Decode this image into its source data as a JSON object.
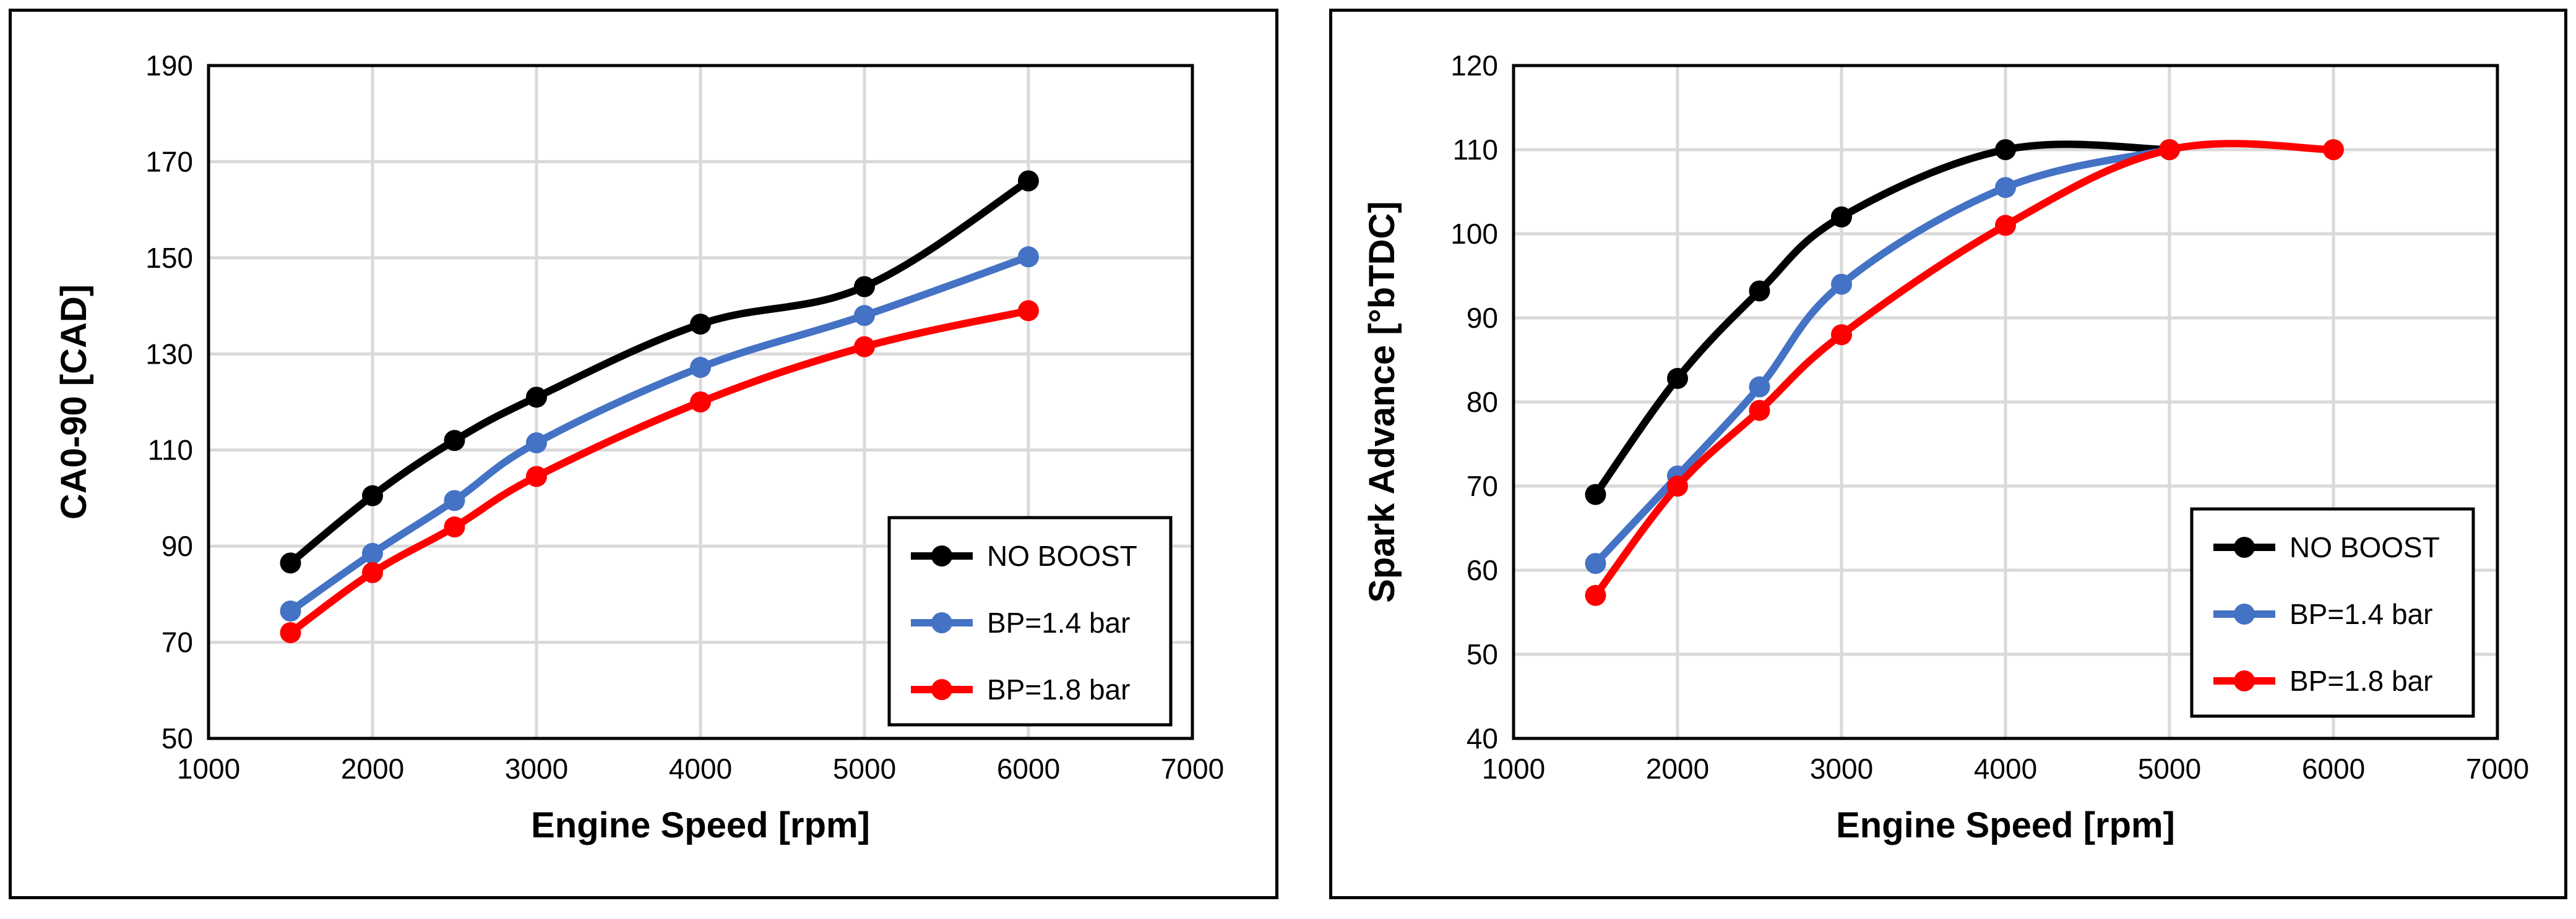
{
  "chart_data": [
    {
      "type": "line",
      "title": "",
      "xlabel": "Engine Speed [rpm]",
      "ylabel": "CA0-90 [CAD]",
      "xlim": [
        1000,
        7000
      ],
      "ylim": [
        50,
        190
      ],
      "xticks": [
        1000,
        2000,
        3000,
        4000,
        5000,
        6000,
        7000
      ],
      "yticks": [
        50,
        70,
        90,
        110,
        130,
        150,
        170,
        190
      ],
      "grid": true,
      "legend_position": "bottom-right",
      "series": [
        {
          "name": "NO BOOST",
          "color": "#000000",
          "x": [
            1500,
            2000,
            2500,
            3000,
            4000,
            5000,
            6000
          ],
          "y": [
            86.5,
            100.5,
            112,
            121,
            136.2,
            144,
            166
          ]
        },
        {
          "name": "BP=1.4 bar",
          "color": "#4472c4",
          "x": [
            1500,
            2000,
            2500,
            3000,
            4000,
            5000,
            6000
          ],
          "y": [
            76.5,
            88.5,
            99.5,
            111.5,
            127.2,
            138,
            150.2
          ]
        },
        {
          "name": "BP=1.8 bar",
          "color": "#ff0000",
          "x": [
            1500,
            2000,
            2500,
            3000,
            4000,
            5000,
            6000
          ],
          "y": [
            72,
            84.5,
            94,
            104.5,
            120,
            131.5,
            139
          ]
        }
      ]
    },
    {
      "type": "line",
      "title": "",
      "xlabel": "Engine Speed [rpm]",
      "ylabel": "Spark Advance [°bTDC]",
      "xlim": [
        1000,
        7000
      ],
      "ylim": [
        40,
        120
      ],
      "xticks": [
        1000,
        2000,
        3000,
        4000,
        5000,
        6000,
        7000
      ],
      "yticks": [
        40,
        50,
        60,
        70,
        80,
        90,
        100,
        110,
        120
      ],
      "grid": true,
      "legend_position": "bottom-right",
      "series": [
        {
          "name": "NO BOOST",
          "color": "#000000",
          "x": [
            1500,
            2000,
            2500,
            3000,
            4000,
            5000
          ],
          "y": [
            69,
            82.8,
            93.2,
            102,
            110,
            110
          ]
        },
        {
          "name": "BP=1.4 bar",
          "color": "#4472c4",
          "x": [
            1500,
            2000,
            2500,
            3000,
            4000,
            5000
          ],
          "y": [
            60.8,
            71.2,
            81.8,
            94,
            105.5,
            110
          ]
        },
        {
          "name": "BP=1.8 bar",
          "color": "#ff0000",
          "x": [
            1500,
            2000,
            2500,
            3000,
            4000,
            5000,
            6000
          ],
          "y": [
            57,
            70,
            79,
            88,
            101,
            110,
            110
          ]
        }
      ]
    }
  ]
}
